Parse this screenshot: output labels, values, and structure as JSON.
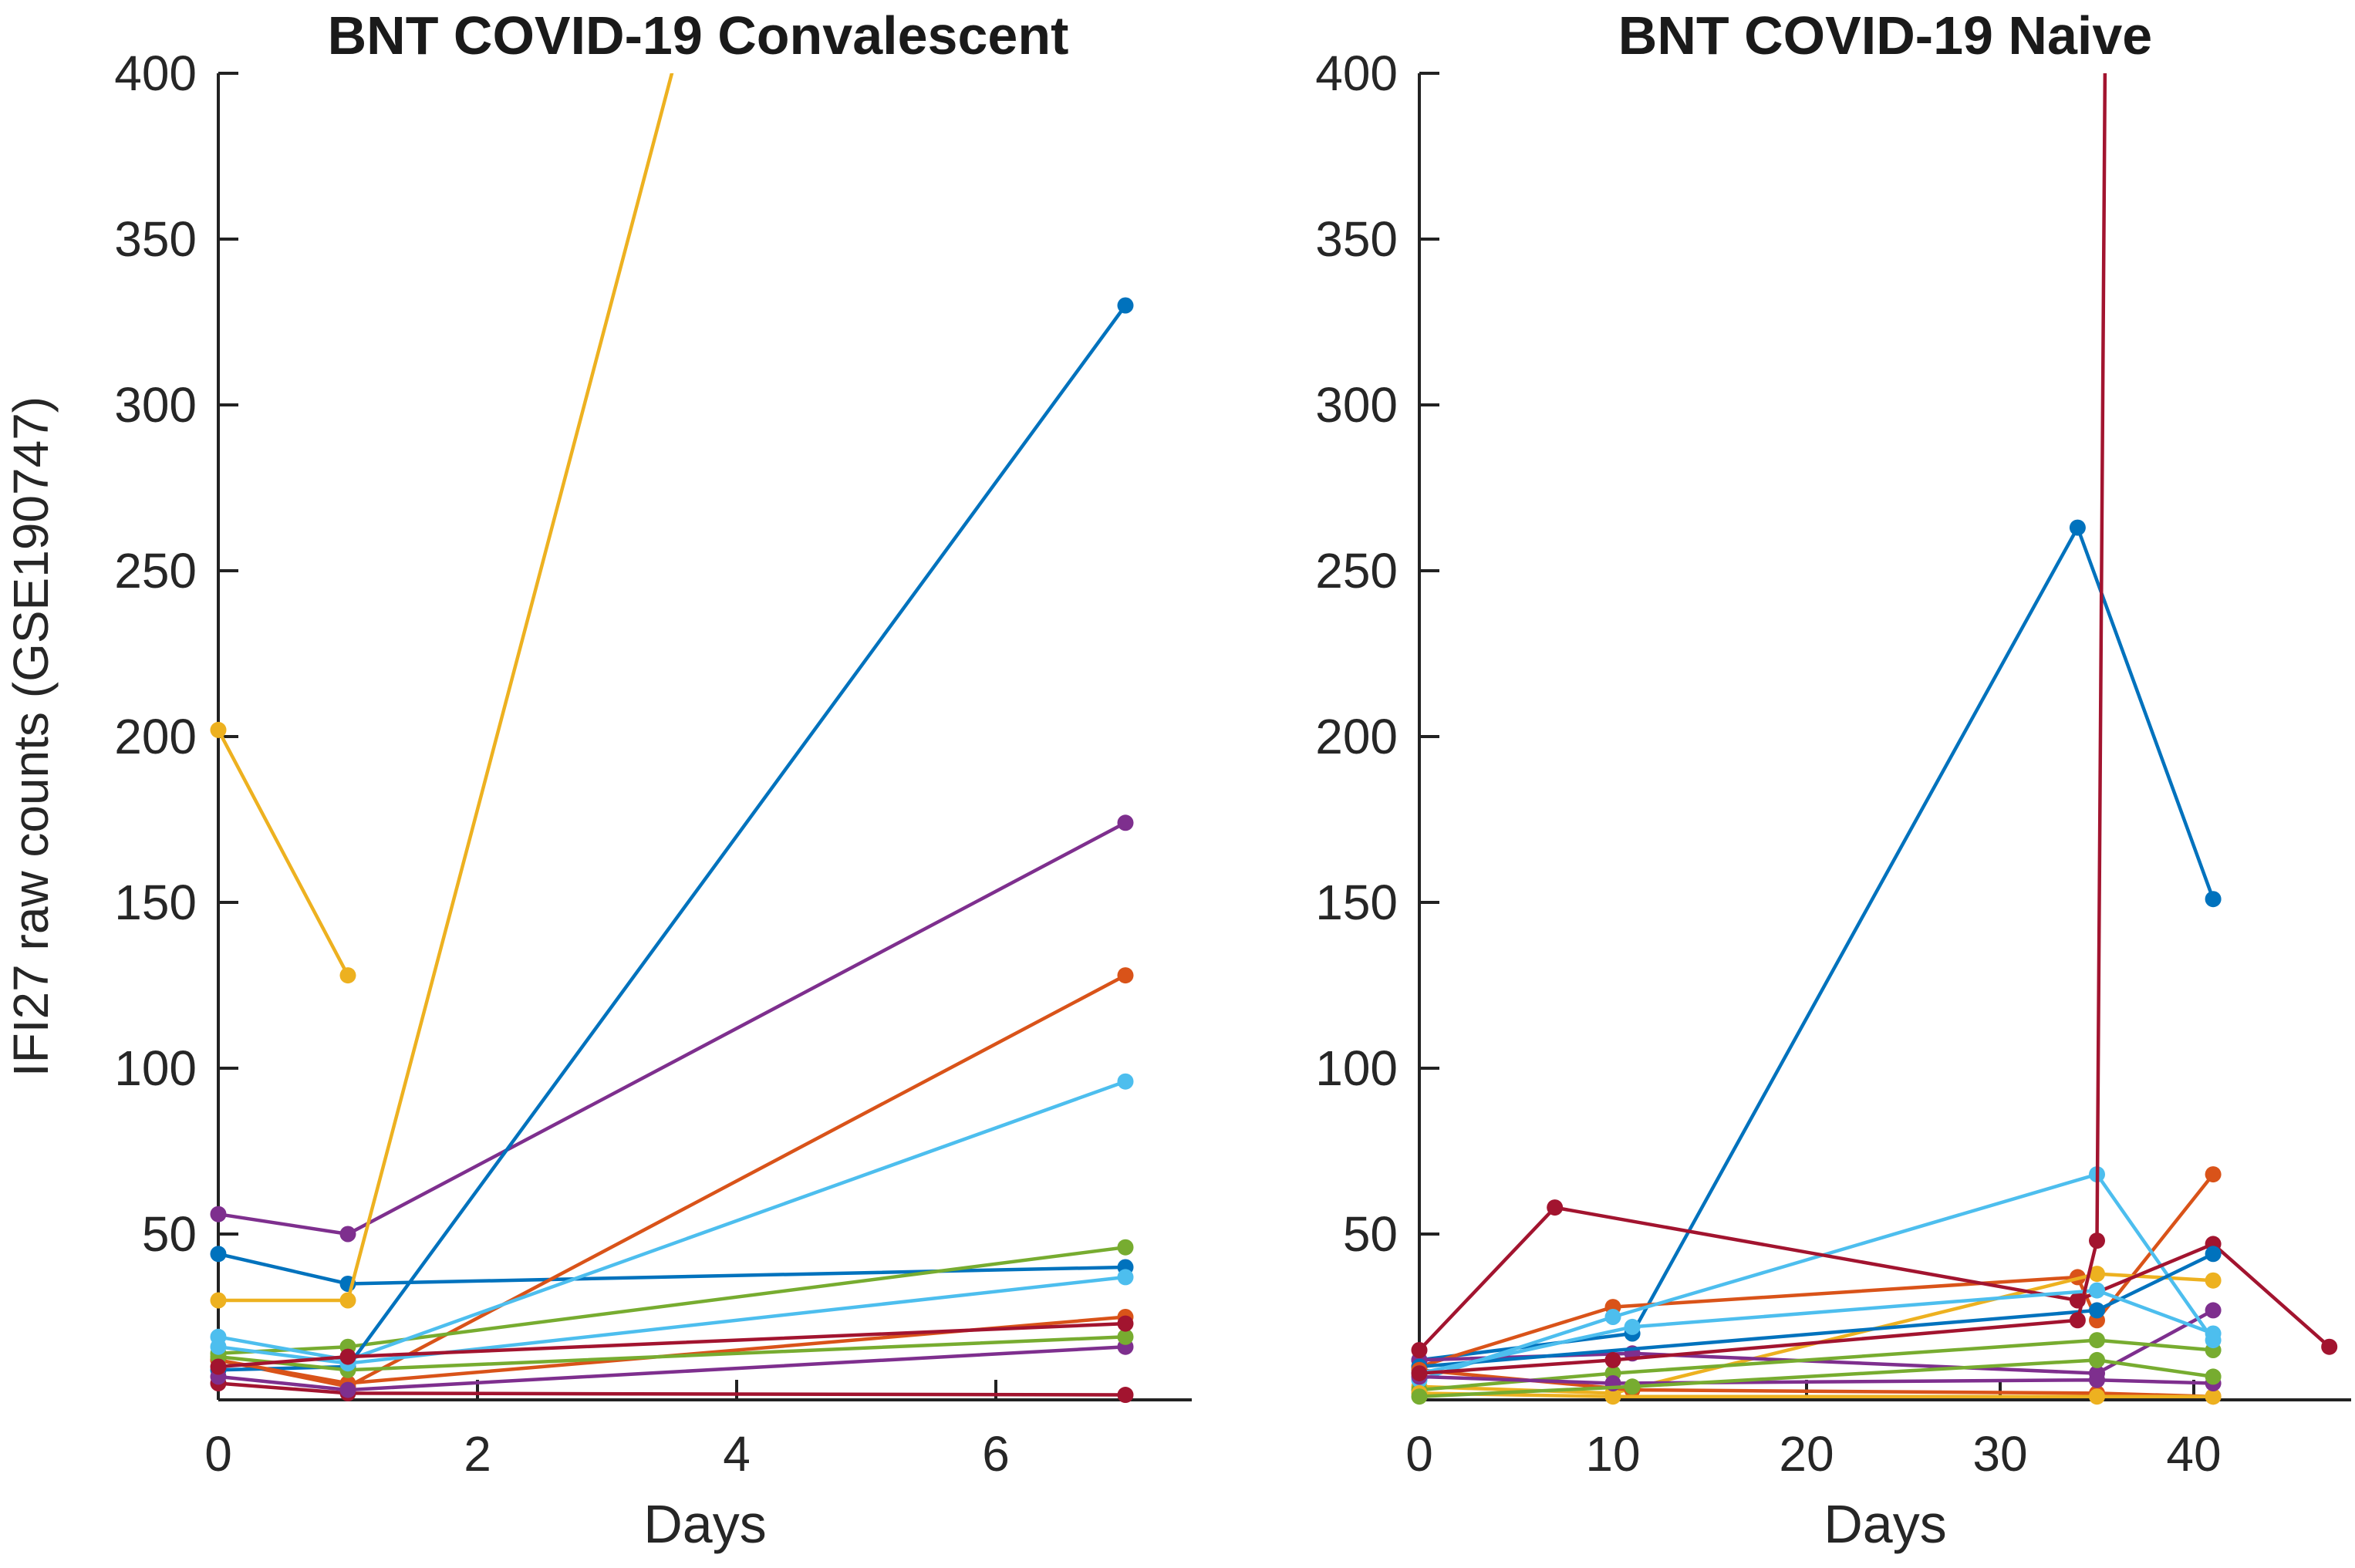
{
  "figure": {
    "background": "#ffffff",
    "text_color": "#262626",
    "axis_color": "#222222"
  },
  "chart_data": [
    {
      "type": "line",
      "title": "BNT COVID-19 Convalescent",
      "xlabel": "Days",
      "ylabel": "IFI27 raw counts (GSE190747)",
      "xlim": [
        0,
        7.5
      ],
      "ylim": [
        0,
        400
      ],
      "xticks": [
        0,
        2,
        4,
        6
      ],
      "yticks": [
        50,
        100,
        150,
        200,
        250,
        300,
        350,
        400
      ],
      "grid": false,
      "legend": "none",
      "marker": "filled-circle",
      "note": "one subject line rises above 400 and is clipped at the top of the axes near day 3.5",
      "series": [
        {
          "name": "subject-1",
          "color": "#0072BD",
          "x": [
            0,
            1,
            7
          ],
          "y": [
            44,
            35,
            40
          ]
        },
        {
          "name": "subject-2",
          "color": "#D95319",
          "x": [
            0,
            1,
            7
          ],
          "y": [
            12,
            4,
            128
          ]
        },
        {
          "name": "subject-3",
          "color": "#EDB120",
          "x": [
            0,
            1
          ],
          "y": [
            202,
            128
          ]
        },
        {
          "name": "subject-4",
          "color": "#7E2F8E",
          "x": [
            0,
            1,
            7
          ],
          "y": [
            56,
            50,
            174
          ]
        },
        {
          "name": "subject-5",
          "color": "#77AC30",
          "x": [
            0,
            1,
            7
          ],
          "y": [
            14,
            16,
            46
          ]
        },
        {
          "name": "subject-6",
          "color": "#4DBEEE",
          "x": [
            0,
            1,
            7
          ],
          "y": [
            19,
            12,
            96
          ]
        },
        {
          "name": "subject-7",
          "color": "#A2142F",
          "x": [
            0,
            1,
            7
          ],
          "y": [
            5,
            2,
            1.5
          ]
        },
        {
          "name": "subject-8",
          "color": "#0072BD",
          "x": [
            0,
            1,
            7
          ],
          "y": [
            9,
            10,
            330
          ]
        },
        {
          "name": "subject-9",
          "color": "#D95319",
          "x": [
            0,
            1,
            7
          ],
          "y": [
            12,
            5,
            25
          ]
        },
        {
          "name": "subject-10",
          "color": "#EDB120",
          "x": [
            0,
            1,
            7
          ],
          "y": [
            30,
            30,
            918
          ]
        },
        {
          "name": "subject-11",
          "color": "#7E2F8E",
          "x": [
            0,
            1,
            7
          ],
          "y": [
            7,
            3,
            16
          ]
        },
        {
          "name": "subject-12",
          "color": "#77AC30",
          "x": [
            0,
            1,
            7
          ],
          "y": [
            13,
            9,
            19
          ]
        },
        {
          "name": "subject-13",
          "color": "#4DBEEE",
          "x": [
            0,
            1,
            7
          ],
          "y": [
            16,
            11,
            37
          ]
        },
        {
          "name": "subject-14",
          "color": "#A2142F",
          "x": [
            0,
            1,
            7
          ],
          "y": [
            10,
            13,
            23
          ]
        }
      ]
    },
    {
      "type": "line",
      "title": "BNT COVID-19 Naive",
      "xlabel": "Days",
      "ylabel": "",
      "xlim": [
        0,
        48
      ],
      "ylim": [
        0,
        400
      ],
      "xticks": [
        0,
        10,
        20,
        30,
        40
      ],
      "yticks": [
        50,
        100,
        150,
        200,
        250,
        300,
        350,
        400
      ],
      "grid": false,
      "legend": "none",
      "marker": "filled-circle",
      "note": "one subject spikes above 400 near day 36 and is clipped at the top of the axes",
      "series": [
        {
          "name": "subject-1",
          "color": "#0072BD",
          "x": [
            0,
            11,
            34,
            41
          ],
          "y": [
            12,
            20,
            263,
            151
          ]
        },
        {
          "name": "subject-2",
          "color": "#D95319",
          "x": [
            0,
            10,
            34,
            35,
            41
          ],
          "y": [
            10,
            28,
            37,
            24,
            68
          ]
        },
        {
          "name": "subject-3",
          "color": "#EDB120",
          "x": [
            0,
            10,
            35,
            41
          ],
          "y": [
            4,
            2,
            38,
            36
          ]
        },
        {
          "name": "subject-4",
          "color": "#7E2F8E",
          "x": [
            0,
            11,
            35,
            41
          ],
          "y": [
            12,
            14,
            8,
            27
          ]
        },
        {
          "name": "subject-5",
          "color": "#77AC30",
          "x": [
            0,
            10,
            35,
            41
          ],
          "y": [
            3,
            8,
            18,
            15
          ]
        },
        {
          "name": "subject-6",
          "color": "#4DBEEE",
          "x": [
            0,
            10,
            35,
            41
          ],
          "y": [
            6,
            25,
            68,
            18
          ]
        },
        {
          "name": "subject-7",
          "color": "#A2142F",
          "x": [
            0,
            7,
            34,
            41,
            47
          ],
          "y": [
            15,
            58,
            30,
            47,
            16
          ]
        },
        {
          "name": "subject-8",
          "color": "#0072BD",
          "x": [
            0,
            35,
            41
          ],
          "y": [
            10,
            27,
            44
          ]
        },
        {
          "name": "subject-9",
          "color": "#D95319",
          "x": [
            0,
            11,
            35,
            41
          ],
          "y": [
            9,
            3,
            2,
            1
          ]
        },
        {
          "name": "subject-10",
          "color": "#EDB120",
          "x": [
            0,
            10,
            35,
            41
          ],
          "y": [
            2,
            1,
            1,
            1
          ]
        },
        {
          "name": "subject-11",
          "color": "#7E2F8E",
          "x": [
            0,
            10,
            35,
            41
          ],
          "y": [
            7,
            5,
            6,
            5
          ]
        },
        {
          "name": "subject-12",
          "color": "#77AC30",
          "x": [
            0,
            11,
            35,
            41
          ],
          "y": [
            1,
            4,
            12,
            7
          ]
        },
        {
          "name": "subject-13",
          "color": "#4DBEEE",
          "x": [
            0,
            11,
            35,
            41
          ],
          "y": [
            8,
            22,
            33,
            20
          ]
        },
        {
          "name": "subject-14",
          "color": "#A2142F",
          "x": [
            0,
            10,
            34,
            35,
            36
          ],
          "y": [
            8,
            12,
            24,
            48,
            900
          ]
        }
      ]
    }
  ]
}
